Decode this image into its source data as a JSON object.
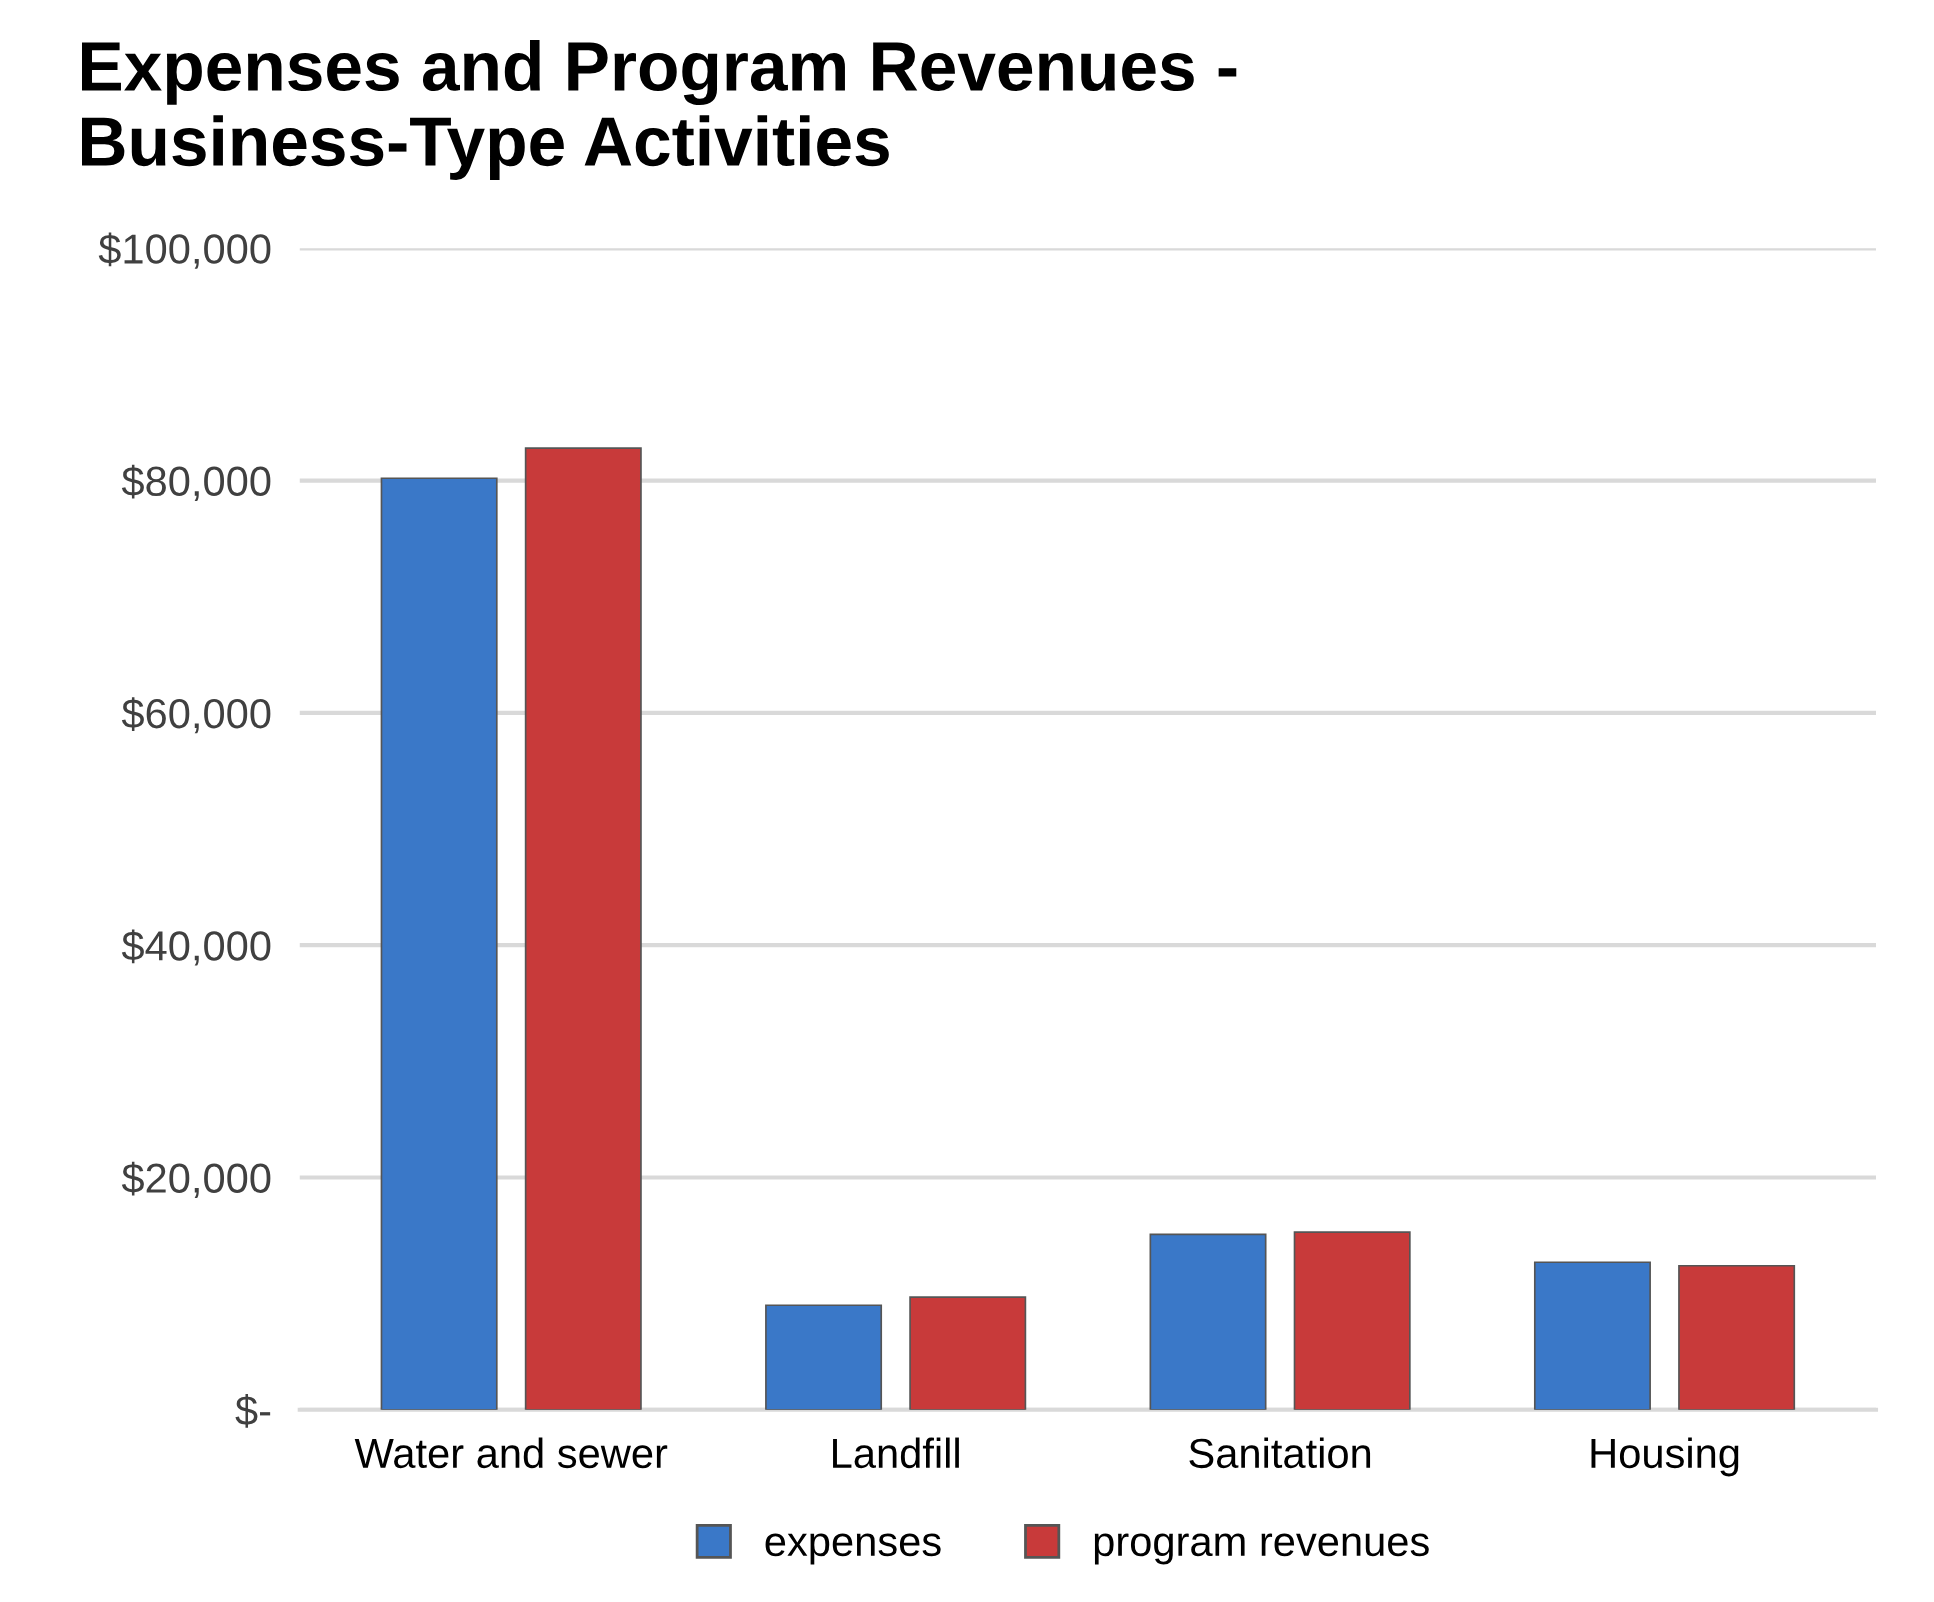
{
  "chart_data": {
    "type": "bar",
    "title": "Expenses and Program Revenues -\nBusiness-Type Activities",
    "categories": [
      "Water and sewer",
      "Landfill",
      "Sanitation",
      "Housing"
    ],
    "series": [
      {
        "name": "expenses",
        "color": "#3a78c8",
        "values": [
          80200,
          9000,
          15100,
          12700
        ]
      },
      {
        "name": "program revenues",
        "color": "#c83a3a",
        "values": [
          82800,
          9700,
          15300,
          12400
        ]
      }
    ],
    "ylim": [
      0,
      100000
    ],
    "yticks": [
      {
        "value": 0,
        "label": "$-"
      },
      {
        "value": 20000,
        "label": "$20,000"
      },
      {
        "value": 40000,
        "label": "$40,000"
      },
      {
        "value": 60000,
        "label": "$60,000"
      },
      {
        "value": 80000,
        "label": "$80,000"
      },
      {
        "value": 100000,
        "label": "$100,000"
      }
    ],
    "grid": "y",
    "legend": "bottom"
  }
}
